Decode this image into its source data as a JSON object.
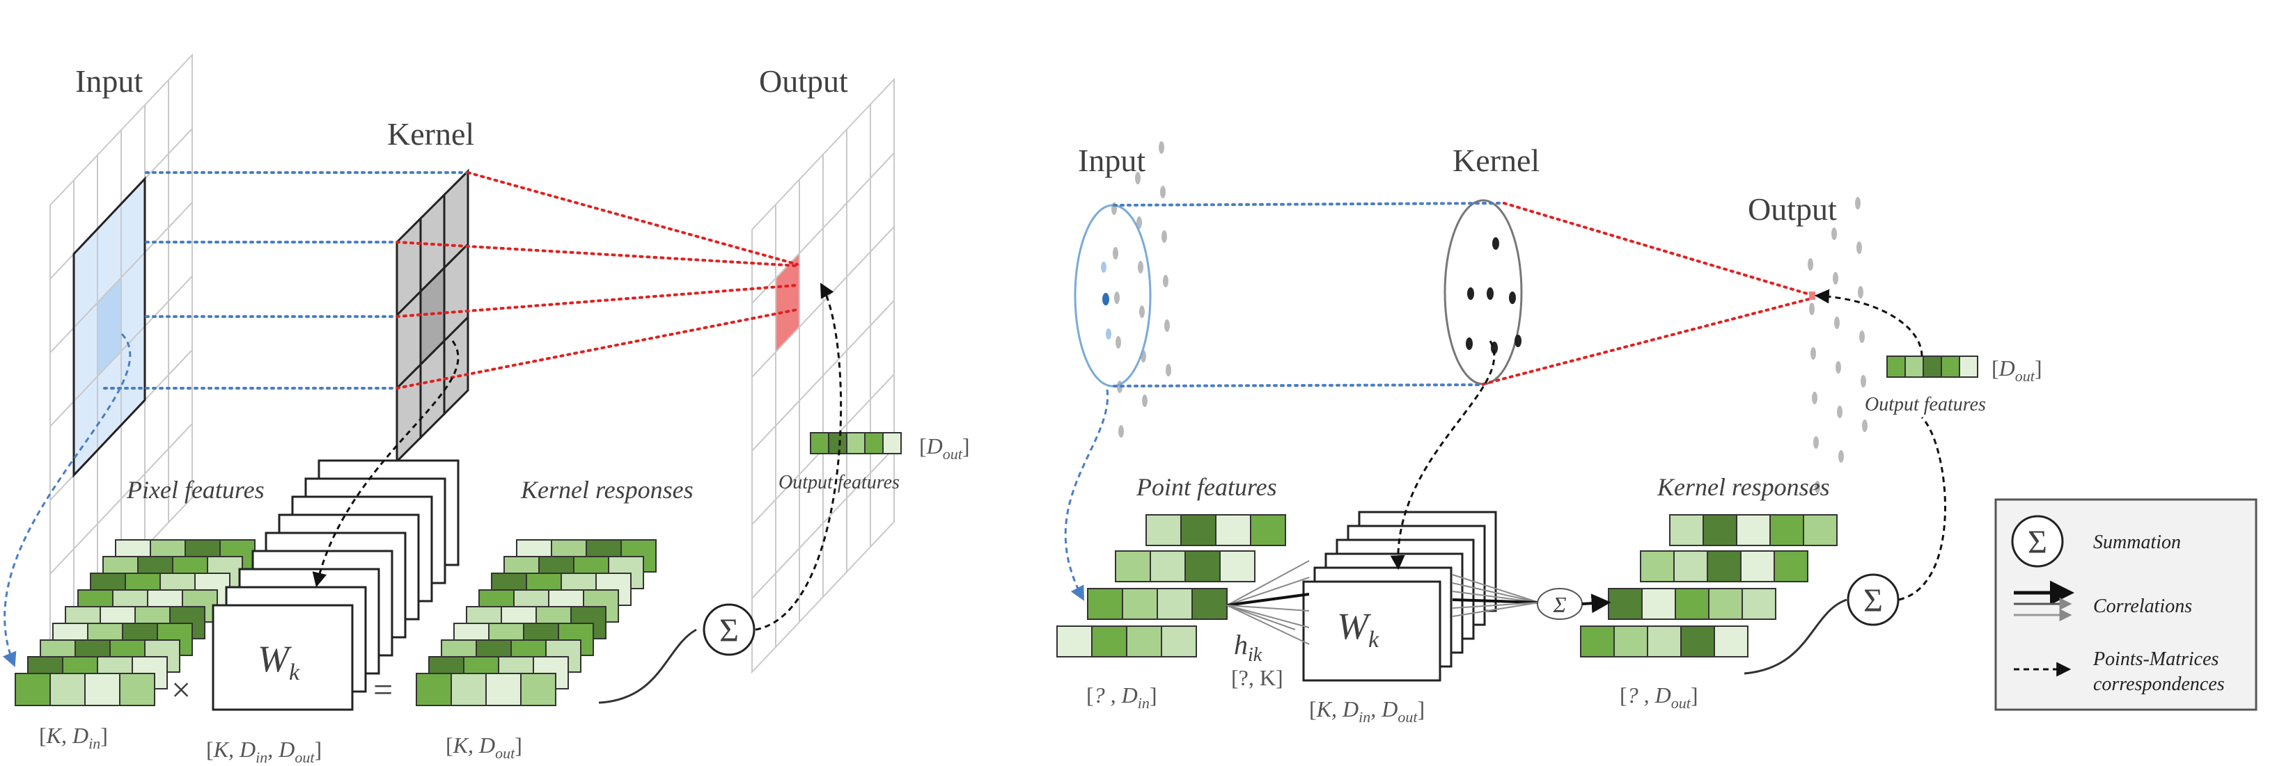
{
  "left": {
    "input_label": "Input",
    "kernel_label": "Kernel",
    "output_label": "Output",
    "pixel_features_label": "Pixel features",
    "kernel_responses_label": "Kernel responses",
    "output_features_label": "Output features",
    "weight_symbol": "W",
    "weight_subscript": "k",
    "times_symbol": "×",
    "equals_symbol": "=",
    "sum_symbol": "Σ",
    "dim_output": {
      "var": "D",
      "sub": "out"
    },
    "dim_input_features": {
      "pre": "K, D",
      "sub": "in"
    },
    "dim_weights": {
      "pre": "K, D",
      "sub1": "in",
      "mid": ", D",
      "sub2": "out"
    },
    "dim_responses": {
      "pre": "K, D",
      "sub": "out"
    }
  },
  "right": {
    "input_label": "Input",
    "kernel_label": "Kernel",
    "output_label": "Output",
    "point_features_label": "Point features",
    "kernel_responses_label": "Kernel responses",
    "output_features_label": "Output features",
    "weight_symbol": "W",
    "weight_subscript": "k",
    "sum_symbol": "Σ",
    "h_symbol": "h",
    "h_subscript": "ik",
    "dim_h": "[?, K]",
    "dim_output": {
      "var": "D",
      "sub": "out"
    },
    "dim_input_features": {
      "pre": "? , D",
      "sub": "in"
    },
    "dim_weights": {
      "pre": "K, D",
      "sub1": "in",
      "mid": ", D",
      "sub2": "out"
    },
    "dim_responses": {
      "pre": "? , D",
      "sub": "out"
    }
  },
  "legend": {
    "summation": "Summation",
    "correlations": "Correlations",
    "correspondences_line1": "Points-Matrices",
    "correspondences_line2": "correspondences",
    "sum_symbol": "Σ"
  },
  "colors": {
    "green_dark": "#538135",
    "green_mid": "#70ad47",
    "green_light": "#a9d18e",
    "green_pale": "#c5e0b4",
    "green_paler": "#e2f0d9",
    "kernel_grey": "#c8c8c8",
    "input_blue": "#dbeafb",
    "output_red": "#f08080",
    "dotted_blue": "#4a7ec4",
    "dotted_red": "#e02020"
  }
}
